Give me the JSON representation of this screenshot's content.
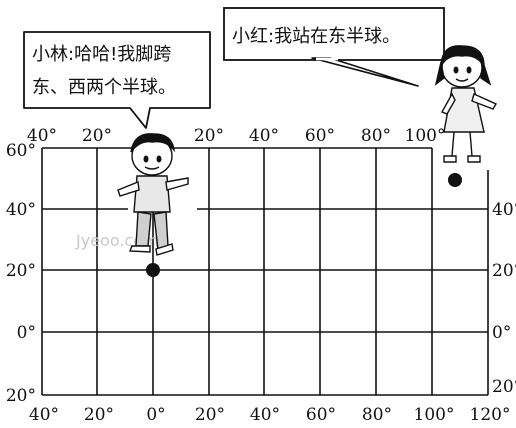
{
  "grid": {
    "x_top_labels": [
      "40°",
      "20°",
      "20°",
      "40°",
      "60°",
      "80°",
      "100°"
    ],
    "x_bottom_labels": [
      "40°",
      "20°",
      "0°",
      "20°",
      "40°",
      "60°",
      "80°",
      "100°",
      "120°"
    ],
    "y_left_labels": [
      "60°",
      "40°",
      "20°",
      "0°",
      "20°"
    ],
    "y_right_labels": [
      "40°",
      "20°",
      "0°",
      "20°"
    ]
  },
  "speech": {
    "xiaolin_line1": "小林:哈哈!我脚跨",
    "xiaolin_line2": "东、西两个半球。",
    "xiaohong": "小红:我站在东半球。"
  },
  "points": {
    "xiaolin": {
      "lon": 0,
      "lat": 20
    },
    "xiaohong": {
      "lon": 110,
      "lat": 50
    }
  },
  "watermark": "Jyeoo.com",
  "colors": {
    "line": "#111111",
    "paper": "#ffffff"
  },
  "icons": {
    "boy": "boy-figure-icon",
    "girl": "girl-figure-icon"
  }
}
